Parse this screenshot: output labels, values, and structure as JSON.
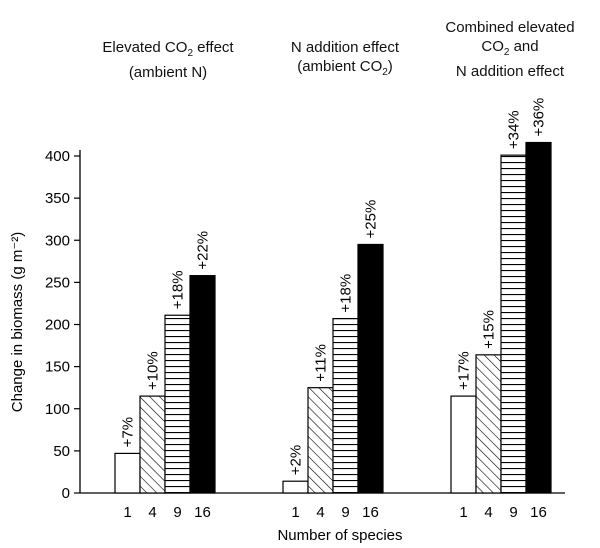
{
  "chart_data": {
    "type": "bar",
    "ylabel": "Change in biomass (g m⁻²)",
    "xlabel": "Number of species",
    "ylim": [
      0,
      420
    ],
    "yticks": [
      0,
      50,
      100,
      150,
      200,
      250,
      300,
      350,
      400
    ],
    "categories": [
      "1",
      "4",
      "9",
      "16"
    ],
    "fills": [
      "open",
      "diagonal-hatch",
      "horizontal-hatch",
      "solid-black"
    ],
    "groups": [
      {
        "title_lines": [
          "Elevated CO",
          "2",
          " effect",
          "(ambient N)"
        ],
        "values": [
          47,
          115,
          211,
          258
        ],
        "labels": [
          "+7%",
          "+10%",
          "+18%",
          "+22%"
        ]
      },
      {
        "title_lines": [
          "N addition effect",
          "(ambient CO",
          "2",
          ")"
        ],
        "values": [
          14,
          125,
          207,
          295
        ],
        "labels": [
          "+2%",
          "+11%",
          "+18%",
          "+25%"
        ]
      },
      {
        "title_lines": [
          "Combined elevated",
          "CO",
          "2",
          " and",
          "N addition effect"
        ],
        "values": [
          115,
          164,
          401,
          416
        ],
        "labels": [
          "+17%",
          "+15%",
          "+34%",
          "+36%"
        ]
      }
    ]
  }
}
